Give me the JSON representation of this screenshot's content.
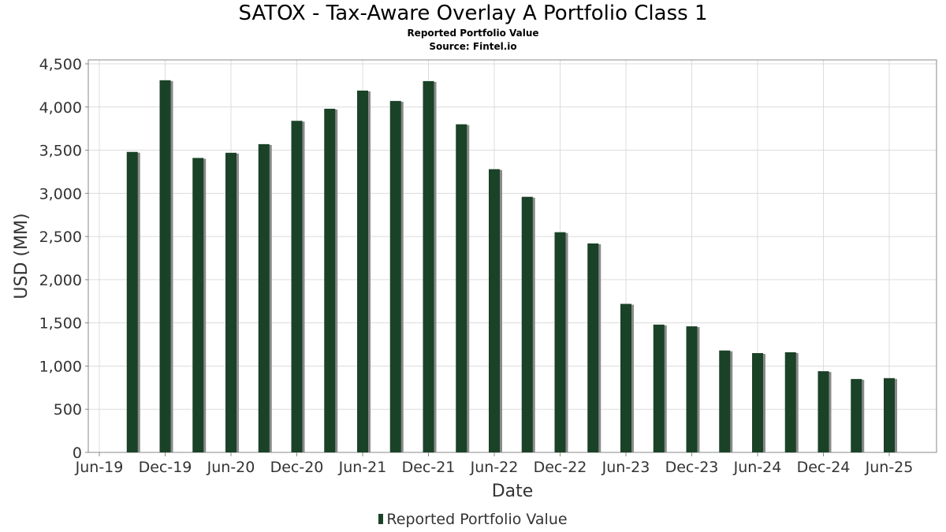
{
  "colors": {
    "bar": "#1a4227",
    "bar_shadow": "#8a8a8a",
    "grid": "#dcdcdc",
    "axis": "#888888"
  },
  "chart_data": {
    "type": "bar",
    "title": "SATOX - Tax-Aware Overlay A Portfolio Class 1",
    "subtitle": "Reported Portfolio Value",
    "source": "Source: Fintel.io",
    "xlabel": "Date",
    "ylabel": "USD (MM)",
    "ylim": [
      0,
      4500
    ],
    "yticks": [
      0,
      500,
      1000,
      1500,
      2000,
      2500,
      3000,
      3500,
      4000,
      4500
    ],
    "ytick_labels": [
      "0",
      "500",
      "1,000",
      "1,500",
      "2,000",
      "2,500",
      "3,000",
      "3,500",
      "4,000",
      "4,500"
    ],
    "xticks": [
      "Jun-19",
      "Dec-19",
      "Jun-20",
      "Dec-20",
      "Jun-21",
      "Dec-21",
      "Jun-22",
      "Dec-22",
      "Jun-23",
      "Dec-23",
      "Jun-24",
      "Dec-24",
      "Jun-25"
    ],
    "legend": "Reported Portfolio Value",
    "legend_position": "bottom",
    "grid": true,
    "series": [
      {
        "name": "Reported Portfolio Value",
        "categories": [
          "Sep-19",
          "Dec-19",
          "Mar-20",
          "Jun-20",
          "Sep-20",
          "Dec-20",
          "Mar-21",
          "Jun-21",
          "Sep-21",
          "Dec-21",
          "Mar-22",
          "Jun-22",
          "Sep-22",
          "Dec-22",
          "Mar-23",
          "Jun-23",
          "Sep-23",
          "Dec-23",
          "Mar-24",
          "Jun-24",
          "Sep-24",
          "Dec-24",
          "Mar-25",
          "Jun-25"
        ],
        "values": [
          3480,
          4310,
          3410,
          3470,
          3570,
          3840,
          3980,
          4190,
          4070,
          4300,
          3800,
          3280,
          2960,
          2550,
          2420,
          1720,
          1480,
          1460,
          1180,
          1150,
          1160,
          940,
          850,
          860
        ]
      }
    ]
  }
}
